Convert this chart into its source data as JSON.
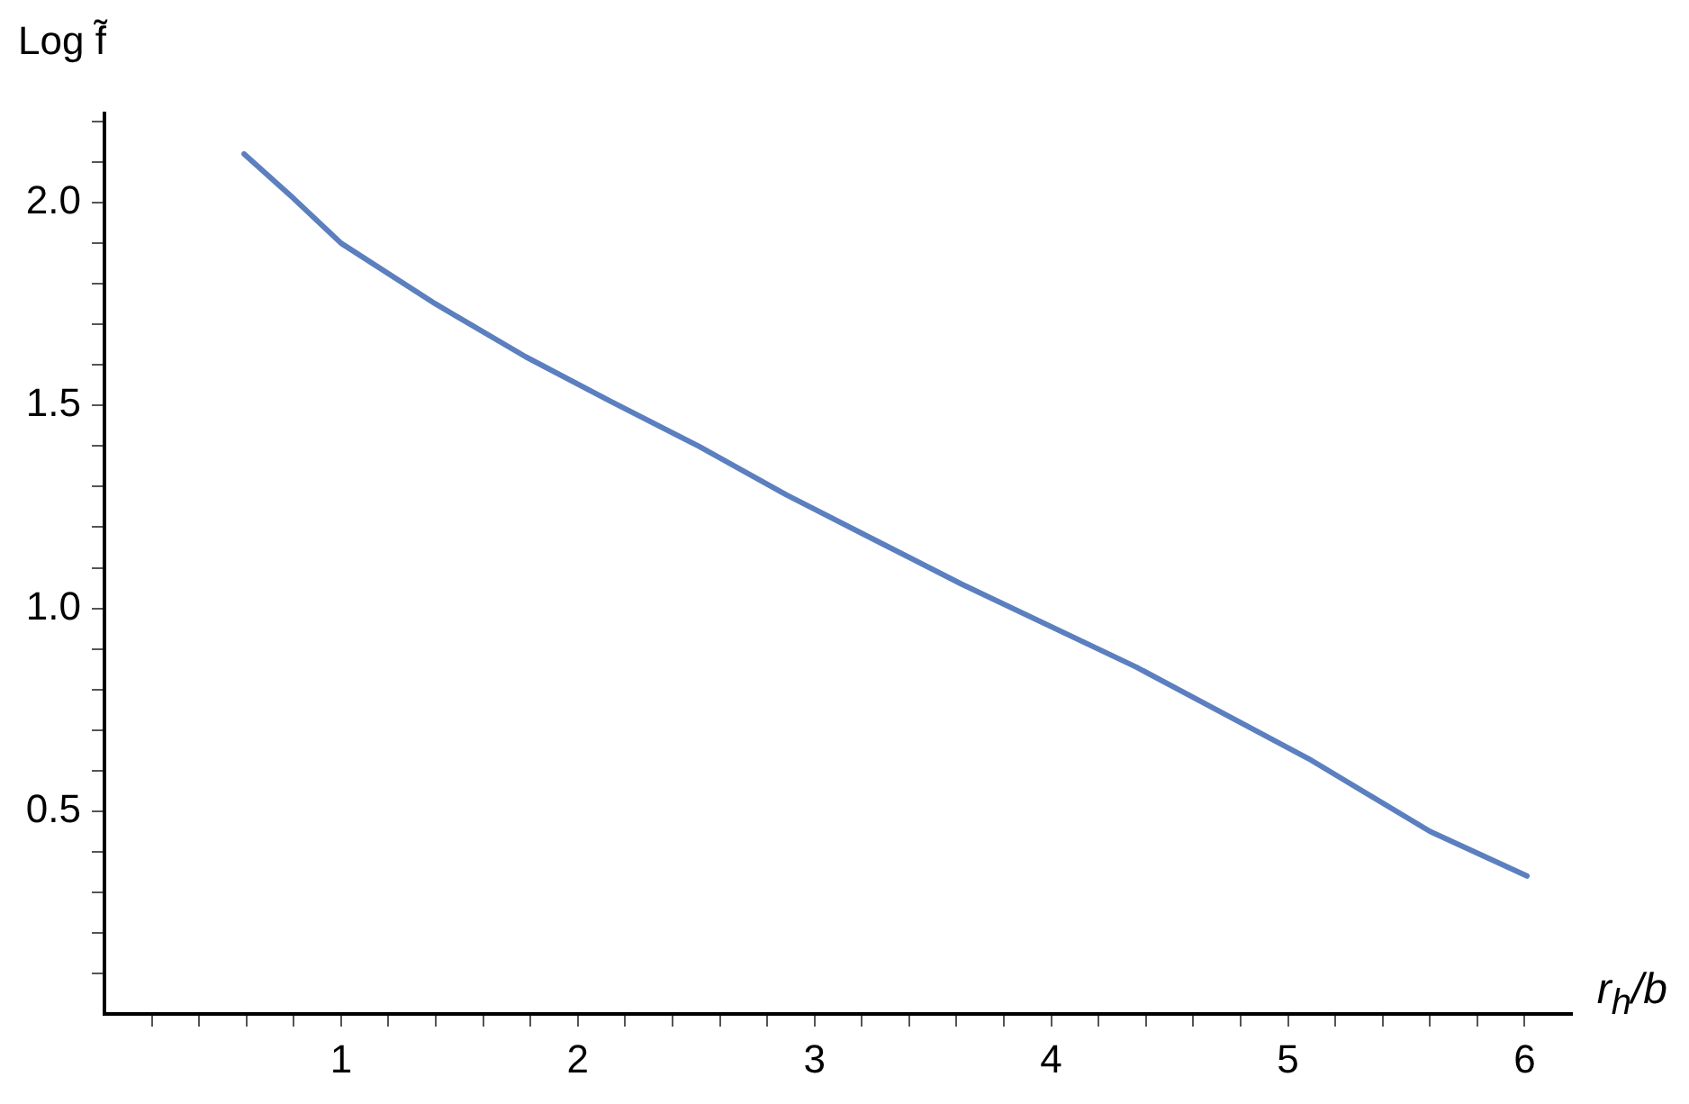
{
  "chart_data": {
    "type": "line",
    "xlabel": "r$_{h}$/b",
    "ylabel": "Log f̃",
    "x": [
      0.59,
      0.8,
      1.0,
      1.4,
      1.78,
      2.14,
      2.51,
      2.88,
      3.25,
      3.62,
      4.36,
      5.1,
      5.6,
      6.01
    ],
    "series": [
      {
        "color": "#5b7fbf",
        "values": [
          2.12,
          2.01,
          1.9,
          1.75,
          1.62,
          1.51,
          1.4,
          1.28,
          1.17,
          1.06,
          0.855,
          0.625,
          0.45,
          0.34
        ]
      }
    ],
    "xlim": [
      0,
      6.2
    ],
    "ylim": [
      0,
      2.22
    ],
    "xticks": [
      {
        "value": 0.2,
        "label": null
      },
      {
        "value": 0.4,
        "label": null
      },
      {
        "value": 0.6,
        "label": null
      },
      {
        "value": 0.8,
        "label": null
      },
      1,
      {
        "value": 1.2,
        "label": null
      },
      {
        "value": 1.4,
        "label": null
      },
      {
        "value": 1.6,
        "label": null
      },
      {
        "value": 1.8,
        "label": null
      },
      2,
      {
        "value": 2.2,
        "label": null
      },
      {
        "value": 2.4,
        "label": null
      },
      {
        "value": 2.6,
        "label": null
      },
      {
        "value": 2.8,
        "label": null
      },
      3,
      {
        "value": 3.2,
        "label": null
      },
      {
        "value": 3.4,
        "label": null
      },
      {
        "value": 3.6,
        "label": null
      },
      {
        "value": 3.8,
        "label": null
      },
      4,
      {
        "value": 4.2,
        "label": null
      },
      {
        "value": 4.4,
        "label": null
      },
      {
        "value": 4.6,
        "label": null
      },
      {
        "value": 4.8,
        "label": null
      },
      5,
      {
        "value": 5.2,
        "label": null
      },
      {
        "value": 5.4,
        "label": null
      },
      {
        "value": 5.6,
        "label": null
      },
      {
        "value": 5.8,
        "label": null
      },
      6
    ],
    "yticks": [
      {
        "value": 0.1,
        "label": null
      },
      {
        "value": 0.2,
        "label": null
      },
      {
        "value": 0.3,
        "label": null
      },
      {
        "value": 0.4,
        "label": null
      },
      0.5,
      {
        "value": 0.6,
        "label": null
      },
      {
        "value": 0.7,
        "label": null
      },
      {
        "value": 0.8,
        "label": null
      },
      {
        "value": 0.9,
        "label": null
      },
      {
        "value": 1,
        "label": "1.0"
      },
      {
        "value": 1.1,
        "label": null
      },
      {
        "value": 1.2,
        "label": null
      },
      {
        "value": 1.3,
        "label": null
      },
      {
        "value": 1.4,
        "label": null
      },
      1.5,
      {
        "value": 1.6,
        "label": null
      },
      {
        "value": 1.7,
        "label": null
      },
      {
        "value": 1.8,
        "label": null
      },
      {
        "value": 1.9,
        "label": null
      },
      {
        "value": 2,
        "label": "2.0"
      },
      {
        "value": 2.1,
        "label": null
      },
      {
        "value": 2.2,
        "label": null
      }
    ],
    "grid": false,
    "legend": false,
    "marker": "none",
    "line_style": "solid"
  }
}
